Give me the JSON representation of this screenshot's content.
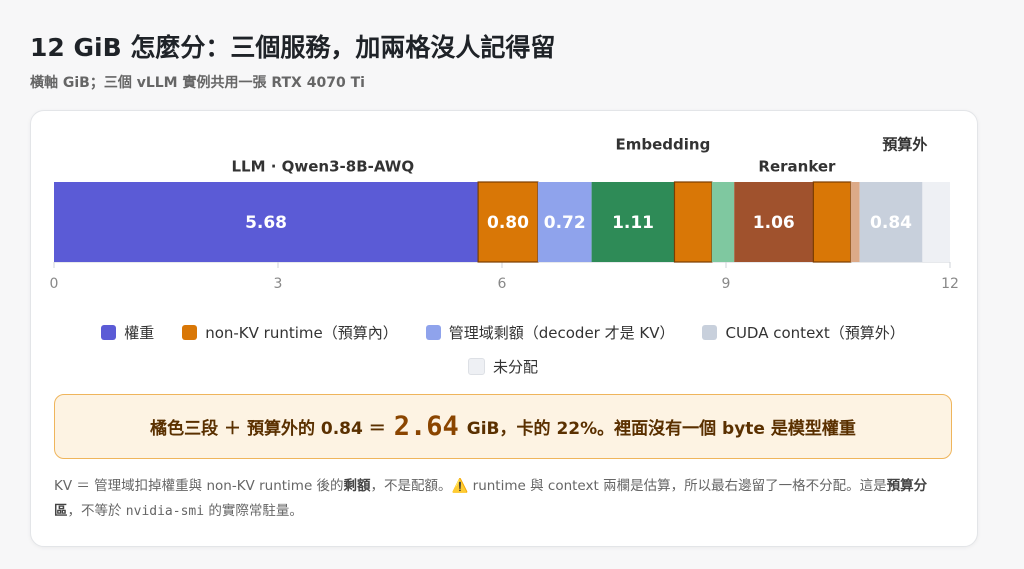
{
  "header": {
    "title": "12 GiB 怎麼分：三個服務，加兩格沒人記得留",
    "subtitle": "橫軸 GiB；三個 vLLM 實例共用一張 RTX 4070 Ti"
  },
  "chart_data": {
    "type": "stacked-bar",
    "groups": [
      {
        "name": "LLM · Qwen3-8B-AWQ",
        "values": [
          5.68,
          0.8,
          0.72
        ],
        "value_labels": [
          "5.68",
          "0.80",
          "0.72"
        ],
        "colors": [
          "#5b5bd6",
          "#d97706",
          "#8fa3ec"
        ]
      },
      {
        "name": "Embedding",
        "values": [
          1.11,
          0.5,
          0.3
        ],
        "value_labels": [
          "1.11",
          null,
          null
        ],
        "colors": [
          "#2e8b57",
          "#d97706",
          "#7fc8a0"
        ]
      },
      {
        "name": "Reranker",
        "values": [
          1.06,
          0.5,
          0.12
        ],
        "value_labels": [
          "1.06",
          null,
          null
        ],
        "colors": [
          "#a0522d",
          "#d97706",
          "#dcaa88"
        ]
      },
      {
        "name": "預算外",
        "values": [
          0.84,
          0.37
        ],
        "value_labels": [
          "0.84",
          null
        ],
        "colors": [
          "#c8d0dc",
          "#eef0f4"
        ]
      }
    ],
    "xlim": [
      0,
      12
    ],
    "xticks": [
      0,
      3,
      6,
      9,
      12
    ],
    "legend": [
      {
        "name": "權重",
        "color": "#5b5bd6"
      },
      {
        "name": "non-KV runtime（預算內）",
        "color": "#d97706"
      },
      {
        "name": "管理域剩額（decoder 才是 KV）",
        "color": "#8fa3ec"
      },
      {
        "name": "CUDA context（預算外）",
        "color": "#c8d0dc"
      },
      {
        "name": "未分配",
        "color": "#eef0f4"
      }
    ]
  },
  "callout": [
    "橘色三段 ＋ 預算外的 0.84 ＝",
    "2.64",
    "GiB，卡的 22%。裡面沒有一個 byte 是模型權重"
  ],
  "note": [
    "KV ＝ 管理域扣掉權重與 non-KV runtime 後的",
    "剩額",
    "，不是配額。⚠️ runtime 與 context 兩欄是估算，所以最右邊留了一格不分配。這是",
    "預算分區",
    "，不等於",
    "nvidia-smi",
    "的實際常駐量。"
  ]
}
